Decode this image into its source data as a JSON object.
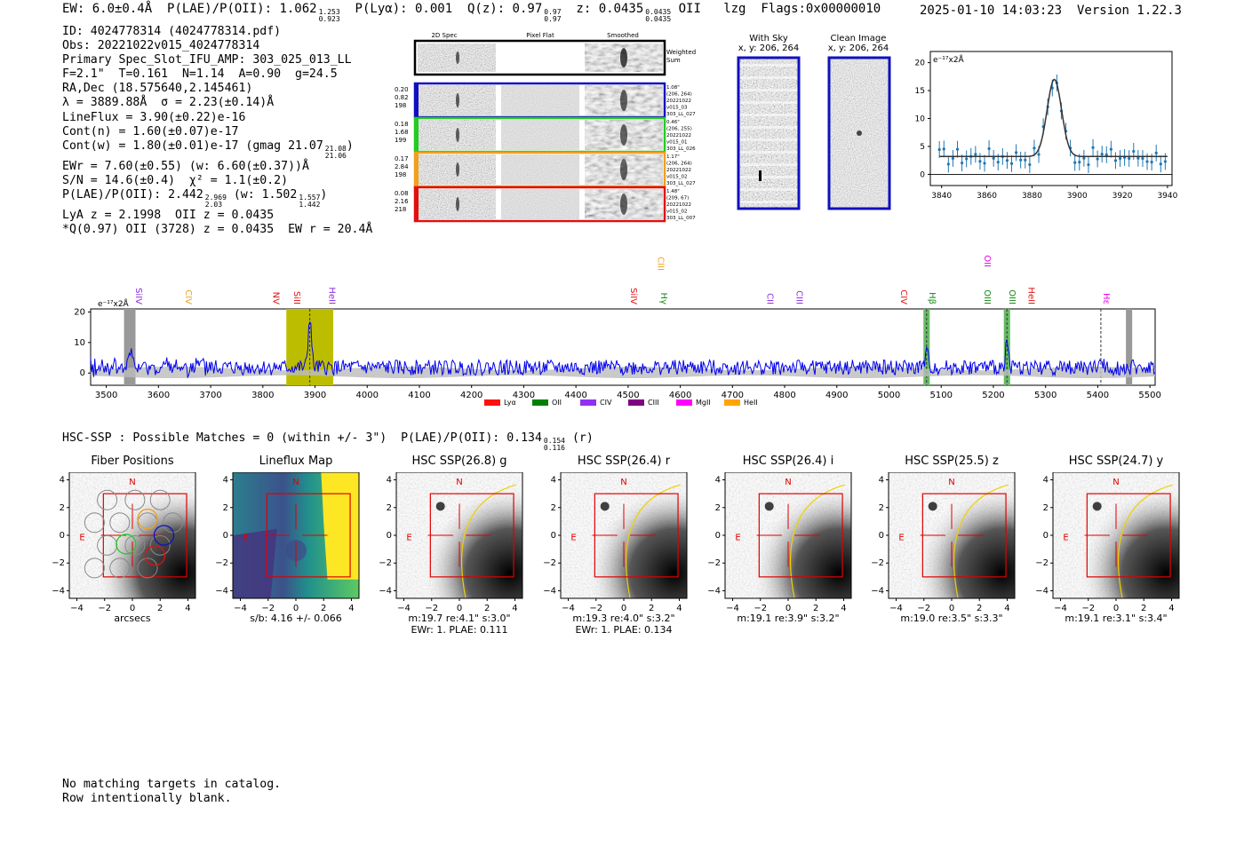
{
  "header": {
    "ew": "EW: 6.0±0.4Å",
    "plae_label": "P(LAE)/P(OII): 1.062",
    "plae_sup": "1.253",
    "plae_sub": "0.923",
    "plya": "P(Lyα): 0.001",
    "qz_label": "Q(z): 0.97",
    "qz_sup": "0.97",
    "qz_sub": "0.97",
    "z_label": "z: 0.0435",
    "z_sup": "0.0435",
    "z_sub": "0.0435",
    "z_line": "OII",
    "lzg": "lzg",
    "flags": "Flags:0x00000010",
    "datetime": "2025-01-10 14:03:23",
    "version": "Version 1.22.3"
  },
  "info": {
    "id": "ID: 4024778314 (4024778314.pdf)",
    "obs": "Obs: 20221022v015_4024778314",
    "primary": "Primary Spec_Slot_IFU_AMP: 303_025_013_LL",
    "fparams": "F=2.1\"  T=0.161  N=1.14  A=0.90  g=24.5",
    "radec": "RA,Dec (18.575640,2.145461)",
    "lambda": "λ = 3889.88Å  σ = 2.23(±0.14)Å",
    "lineflux": "LineFlux = 3.90(±0.22)e-16",
    "contn": "Cont(n) = 1.60(±0.07)e-17",
    "contw": "Cont(w) = 1.80(±0.01)e-17 (gmag 21.07",
    "contw_sup": "21.08",
    "contw_sub": "21.06",
    "ewr": "EWr = 7.60(±0.55) (w: 6.60(±0.37))Å",
    "sn": "S/N = 14.6(±0.4)  χ² = 1.1(±0.2)",
    "plae": "P(LAE)/P(OII): 2.442",
    "plae_sup": "2.969",
    "plae_sub": "2.03",
    "plae_w": "(w: 1.502",
    "plae_w_sup": "1.557",
    "plae_w_sub": "1.442",
    "lya": "LyA z = 2.1998  OII z = 0.0435",
    "q": "*Q(0.97) OII (3728) z = 0.0435  EW r = 20.4Å"
  },
  "spec2d": {
    "col_labels": [
      "2D Spec",
      "Pixel Flat",
      "Smoothed"
    ],
    "weighted": [
      "Weighted",
      "Sum"
    ],
    "rows": [
      {
        "left": [
          "0.20",
          "0.82",
          "198"
        ],
        "right": [
          "1.08\"",
          "(206, 264)",
          "20221022",
          "v015_03",
          "303_LL_027"
        ],
        "color": "#1010c0"
      },
      {
        "left": [
          "0.18",
          "1.68",
          "199"
        ],
        "right": [
          "0.46\"",
          "(206, 255)",
          "20221022",
          "v015_01",
          "303_LL_026"
        ],
        "color": "#22cc22"
      },
      {
        "left": [
          "0.17",
          "2.84",
          "198"
        ],
        "right": [
          "1.17\"",
          "(206, 264)",
          "20221022",
          "v015_02",
          "303_LL_027"
        ],
        "color": "#f0a020"
      },
      {
        "left": [
          "0.08",
          "2.16",
          "218"
        ],
        "right": [
          "1.48\"",
          "(209, 67)",
          "20221022",
          "v015_02",
          "303_LL_007"
        ],
        "color": "#e01010"
      }
    ]
  },
  "cutouts": {
    "with_sky": [
      "With Sky",
      "x, y: 206, 264"
    ],
    "clean": [
      "Clean Image",
      "x, y: 206, 264"
    ]
  },
  "zoom_plot": {
    "unit": "e⁻¹⁷x2Å",
    "y_ticks": [
      "0",
      "5",
      "10",
      "15",
      "20"
    ],
    "x_ticks": [
      "3840",
      "3860",
      "3880",
      "3900",
      "3920",
      "3940"
    ]
  },
  "full_spectrum": {
    "unit": "e⁻¹⁷x2Å",
    "y_ticks": [
      "20",
      "10",
      "0"
    ],
    "x_ticks": [
      "3500",
      "3600",
      "3700",
      "3800",
      "3900",
      "4000",
      "4100",
      "4200",
      "4300",
      "4400",
      "4500",
      "4600",
      "4700",
      "4800",
      "4900",
      "5000",
      "5100",
      "5200",
      "5300",
      "5400",
      "5500"
    ],
    "line_labels": [
      {
        "text": "SiIV",
        "color": "#8a2be2"
      },
      {
        "text": "CIV",
        "color": "#f0a020"
      },
      {
        "text": "NV",
        "color": "#e01010"
      },
      {
        "text": "SiII",
        "color": "#e01010"
      },
      {
        "text": "HeII",
        "color": "#8a2be2"
      },
      {
        "text": "SiIV",
        "color": "#e01010"
      },
      {
        "text": "CIII",
        "color": "#f0a020"
      },
      {
        "text": "Hγ",
        "color": "#118811"
      },
      {
        "text": "CII",
        "color": "#8a2be2"
      },
      {
        "text": "CIII",
        "color": "#8a2be2"
      },
      {
        "text": "CIV",
        "color": "#e01010"
      },
      {
        "text": "Hβ",
        "color": "#118811"
      },
      {
        "text": "OII",
        "color": "#ee00ee"
      },
      {
        "text": "OIII",
        "color": "#118811"
      },
      {
        "text": "OIII",
        "color": "#118811"
      },
      {
        "text": "HeII",
        "color": "#e01010"
      },
      {
        "text": "Hε",
        "color": "#ee00ee"
      }
    ],
    "legend": [
      {
        "label": "Lyα",
        "color": "#ff1010"
      },
      {
        "label": "OII",
        "color": "#008000"
      },
      {
        "label": "CIV",
        "color": "#9030f0"
      },
      {
        "label": "CIII",
        "color": "#800080"
      },
      {
        "label": "MgII",
        "color": "#ff00ff"
      },
      {
        "label": "HeII",
        "color": "#ffa500"
      }
    ]
  },
  "hsc": {
    "summary": "HSC-SSP : Possible Matches = 0 (within +/- 3\")  P(LAE)/P(OII): 0.134",
    "summary_sup": "0.154",
    "summary_sub": "0.116",
    "summary_tail": "(r)",
    "panels": [
      {
        "title": "Fiber Positions",
        "cap1": "arcsecs",
        "cap2": ""
      },
      {
        "title": "Lineflux Map",
        "cap1": "s/b: 4.16 +/- 0.066",
        "cap2": ""
      },
      {
        "title": "HSC SSP(26.8) g",
        "cap1": "m:19.7  re:4.1\"  s:3.0\"",
        "cap2": "EWr: 1. PLAE: 0.111"
      },
      {
        "title": "HSC SSP(26.4) r",
        "cap1": "m:19.3  re:4.0\"  s:3.2\"",
        "cap2": "EWr: 1. PLAE: 0.134"
      },
      {
        "title": "HSC SSP(26.4) i",
        "cap1": "m:19.1  re:3.9\"  s:3.2\"",
        "cap2": ""
      },
      {
        "title": "HSC SSP(25.5) z",
        "cap1": "m:19.0  re:3.5\"  s:3.3\"",
        "cap2": ""
      },
      {
        "title": "HSC SSP(24.7) y",
        "cap1": "m:19.1  re:3.1\"  s:3.4\"",
        "cap2": ""
      }
    ],
    "ticks": [
      "4",
      "2",
      "0",
      "−2",
      "−4"
    ],
    "xticks": [
      "−4",
      "−2",
      "0",
      "2",
      "4"
    ],
    "north": "N",
    "east": "E"
  },
  "footer": {
    "line1": "No matching targets in catalog.",
    "line2": "Row intentionally blank."
  }
}
